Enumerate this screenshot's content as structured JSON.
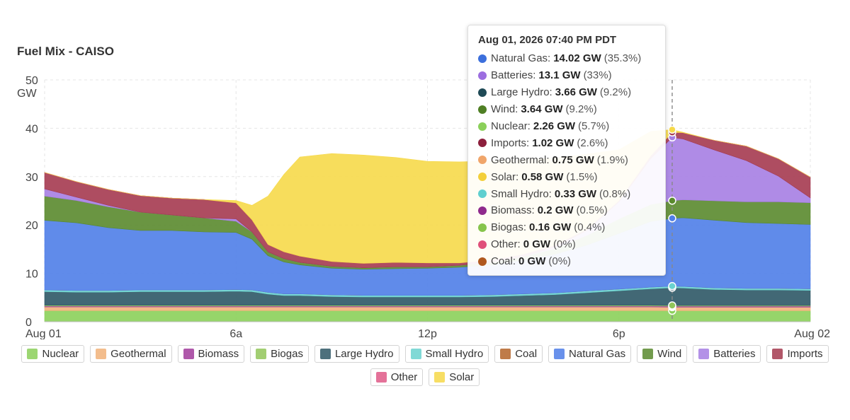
{
  "title": "Fuel Mix - CAISO",
  "chart_data": {
    "type": "area",
    "stacked": true,
    "title": "Fuel Mix - CAISO",
    "ylabel": "GW",
    "ylim": [
      0,
      50
    ],
    "yticks": [
      0,
      10,
      20,
      30,
      40,
      50
    ],
    "xlim": [
      0,
      24
    ],
    "xticks": [
      {
        "x": 0,
        "label": "Aug 01"
      },
      {
        "x": 6,
        "label": "6a"
      },
      {
        "x": 12,
        "label": "12p"
      },
      {
        "x": 18,
        "label": "6p"
      },
      {
        "x": 24,
        "label": "Aug 02"
      }
    ],
    "grid": true,
    "x": [
      0,
      1,
      2,
      3,
      4,
      5,
      6,
      6.5,
      7,
      7.5,
      8,
      9,
      10,
      11,
      12,
      13,
      14,
      15,
      16,
      17,
      18,
      19,
      19.67,
      20,
      21,
      22,
      23,
      24
    ],
    "series": [
      {
        "name": "Nuclear",
        "color": "#8bd05a",
        "values": [
          2.3,
          2.3,
          2.3,
          2.3,
          2.3,
          2.3,
          2.3,
          2.3,
          2.3,
          2.3,
          2.3,
          2.3,
          2.3,
          2.3,
          2.3,
          2.3,
          2.3,
          2.3,
          2.3,
          2.3,
          2.3,
          2.3,
          2.26,
          2.26,
          2.26,
          2.26,
          2.26,
          2.26
        ]
      },
      {
        "name": "Geothermal",
        "color": "#f2b27a",
        "values": [
          0.75,
          0.75,
          0.75,
          0.75,
          0.75,
          0.75,
          0.75,
          0.75,
          0.75,
          0.75,
          0.75,
          0.75,
          0.75,
          0.75,
          0.75,
          0.75,
          0.75,
          0.75,
          0.75,
          0.75,
          0.75,
          0.75,
          0.75,
          0.75,
          0.75,
          0.75,
          0.75,
          0.75
        ]
      },
      {
        "name": "Biomass",
        "color": "#a23c9c",
        "values": [
          0.2,
          0.2,
          0.2,
          0.2,
          0.2,
          0.2,
          0.2,
          0.2,
          0.2,
          0.2,
          0.2,
          0.2,
          0.2,
          0.2,
          0.2,
          0.2,
          0.2,
          0.2,
          0.2,
          0.2,
          0.2,
          0.2,
          0.2,
          0.2,
          0.2,
          0.2,
          0.2,
          0.2
        ]
      },
      {
        "name": "Biogas",
        "color": "#92c65a",
        "values": [
          0.16,
          0.16,
          0.16,
          0.16,
          0.16,
          0.16,
          0.16,
          0.16,
          0.16,
          0.16,
          0.16,
          0.16,
          0.16,
          0.16,
          0.16,
          0.16,
          0.16,
          0.16,
          0.16,
          0.16,
          0.16,
          0.16,
          0.16,
          0.16,
          0.16,
          0.16,
          0.16,
          0.16
        ]
      },
      {
        "name": "Large Hydro",
        "color": "#2e5866",
        "values": [
          2.8,
          2.7,
          2.7,
          2.8,
          2.8,
          2.8,
          2.9,
          2.8,
          2.3,
          2.0,
          2.0,
          1.8,
          1.7,
          1.7,
          1.7,
          1.7,
          1.8,
          2.0,
          2.2,
          2.6,
          3.0,
          3.4,
          3.66,
          3.6,
          3.3,
          3.2,
          3.2,
          3.1
        ]
      },
      {
        "name": "Small Hydro",
        "color": "#6ad3d0",
        "values": [
          0.35,
          0.35,
          0.35,
          0.35,
          0.35,
          0.35,
          0.35,
          0.35,
          0.35,
          0.35,
          0.35,
          0.35,
          0.35,
          0.35,
          0.35,
          0.35,
          0.35,
          0.35,
          0.35,
          0.35,
          0.35,
          0.34,
          0.33,
          0.33,
          0.33,
          0.33,
          0.33,
          0.33
        ]
      },
      {
        "name": "Coal",
        "color": "#b5652a",
        "values": [
          0,
          0,
          0,
          0,
          0,
          0,
          0,
          0,
          0,
          0,
          0,
          0,
          0,
          0,
          0,
          0,
          0,
          0,
          0,
          0,
          0,
          0,
          0,
          0,
          0,
          0,
          0,
          0
        ]
      },
      {
        "name": "Natural Gas",
        "color": "#4f7ee8",
        "values": [
          14.4,
          14.0,
          13.0,
          12.3,
          12.3,
          12.0,
          11.8,
          10.5,
          7.6,
          6.6,
          6.0,
          5.5,
          5.4,
          5.5,
          5.6,
          5.8,
          6.2,
          7.0,
          8.0,
          9.5,
          11.5,
          13.6,
          14.02,
          14.2,
          14.0,
          13.6,
          13.4,
          13.3
        ]
      },
      {
        "name": "Wind",
        "color": "#5a8a2e",
        "values": [
          5.0,
          4.6,
          4.3,
          3.8,
          3.2,
          2.9,
          2.3,
          1.5,
          0.8,
          0.7,
          0.5,
          0.4,
          0.3,
          0.4,
          0.3,
          0.4,
          0.5,
          0.7,
          1.2,
          2.0,
          3.0,
          3.5,
          3.64,
          3.7,
          4.0,
          4.3,
          4.5,
          4.5
        ]
      },
      {
        "name": "Batteries",
        "color": "#a67ee3",
        "values": [
          1.5,
          0.7,
          0.3,
          0,
          0,
          0,
          0.5,
          0,
          0,
          0,
          0,
          0,
          0,
          0,
          0,
          0,
          0,
          0,
          0.3,
          1.0,
          3.5,
          9.5,
          13.1,
          12.6,
          10.5,
          8.5,
          5.3,
          1.0
        ]
      },
      {
        "name": "Imports",
        "color": "#a53a50",
        "values": [
          3.4,
          3.2,
          3.3,
          3.4,
          3.5,
          3.8,
          3.3,
          2.5,
          1.5,
          1.4,
          1.3,
          1.0,
          0.9,
          0.9,
          0.8,
          0.5,
          0.5,
          0.5,
          0.4,
          0.3,
          0.3,
          0.6,
          1.02,
          1.3,
          2.0,
          3.0,
          3.6,
          4.3
        ]
      },
      {
        "name": "Other",
        "color": "#e05a88",
        "values": [
          0,
          0,
          0,
          0,
          0,
          0,
          0,
          0,
          0,
          0,
          0,
          0,
          0,
          0,
          0,
          0,
          0,
          0,
          0,
          0,
          0,
          0,
          0,
          0,
          0,
          0,
          0,
          0
        ]
      },
      {
        "name": "Solar",
        "color": "#f6d94a",
        "values": [
          0,
          0,
          0,
          0,
          0,
          0,
          0.5,
          3.0,
          10.0,
          16.0,
          20.5,
          22.3,
          22.4,
          21.7,
          21.0,
          20.9,
          20.5,
          19.5,
          18.0,
          15.5,
          10.5,
          5.0,
          0.58,
          0.1,
          0,
          0,
          0,
          0
        ]
      }
    ],
    "legend": {
      "position": "bottom"
    },
    "crosshair_x": 19.67
  },
  "legend_items": [
    {
      "label": "Nuclear",
      "color": "#8bd05a"
    },
    {
      "label": "Geothermal",
      "color": "#f2b27a"
    },
    {
      "label": "Biomass",
      "color": "#a23c9c"
    },
    {
      "label": "Biogas",
      "color": "#92c65a"
    },
    {
      "label": "Large Hydro",
      "color": "#2e5866"
    },
    {
      "label": "Small Hydro",
      "color": "#6ad3d0"
    },
    {
      "label": "Coal",
      "color": "#b5652a"
    },
    {
      "label": "Natural Gas",
      "color": "#4f7ee8"
    },
    {
      "label": "Wind",
      "color": "#5a8a2e"
    },
    {
      "label": "Batteries",
      "color": "#a67ee3"
    },
    {
      "label": "Imports",
      "color": "#a53a50"
    },
    {
      "label": "Other",
      "color": "#e05a88"
    },
    {
      "label": "Solar",
      "color": "#f6d94a"
    }
  ],
  "tooltip": {
    "header": "Aug 01, 2026 07:40 PM PDT",
    "rows": [
      {
        "label": "Natural Gas:",
        "value": "14.02 GW",
        "pct": "(35.3%)",
        "color": "#3c6fdc"
      },
      {
        "label": "Batteries:",
        "value": "13.1 GW",
        "pct": "(33%)",
        "color": "#9c6ee0"
      },
      {
        "label": "Large Hydro:",
        "value": "3.66 GW",
        "pct": "(9.2%)",
        "color": "#1f4a56"
      },
      {
        "label": "Wind:",
        "value": "3.64 GW",
        "pct": "(9.2%)",
        "color": "#4f7f24"
      },
      {
        "label": "Nuclear:",
        "value": "2.26 GW",
        "pct": "(5.7%)",
        "color": "#8bd05a"
      },
      {
        "label": "Imports:",
        "value": "1.02 GW",
        "pct": "(2.6%)",
        "color": "#8c1f3c"
      },
      {
        "label": "Geothermal:",
        "value": "0.75 GW",
        "pct": "(1.9%)",
        "color": "#f0a56a"
      },
      {
        "label": "Solar:",
        "value": "0.58 GW",
        "pct": "(1.5%)",
        "color": "#f3cf3a"
      },
      {
        "label": "Small Hydro:",
        "value": "0.33 GW",
        "pct": "(0.8%)",
        "color": "#5fcfcf"
      },
      {
        "label": "Biomass:",
        "value": "0.2 GW",
        "pct": "(0.5%)",
        "color": "#8f2a8c"
      },
      {
        "label": "Biogas:",
        "value": "0.16 GW",
        "pct": "(0.4%)",
        "color": "#86c44c"
      },
      {
        "label": "Other:",
        "value": "0 GW",
        "pct": "(0%)",
        "color": "#e0507a"
      },
      {
        "label": "Coal:",
        "value": "0 GW",
        "pct": "(0%)",
        "color": "#b0581e"
      }
    ]
  }
}
